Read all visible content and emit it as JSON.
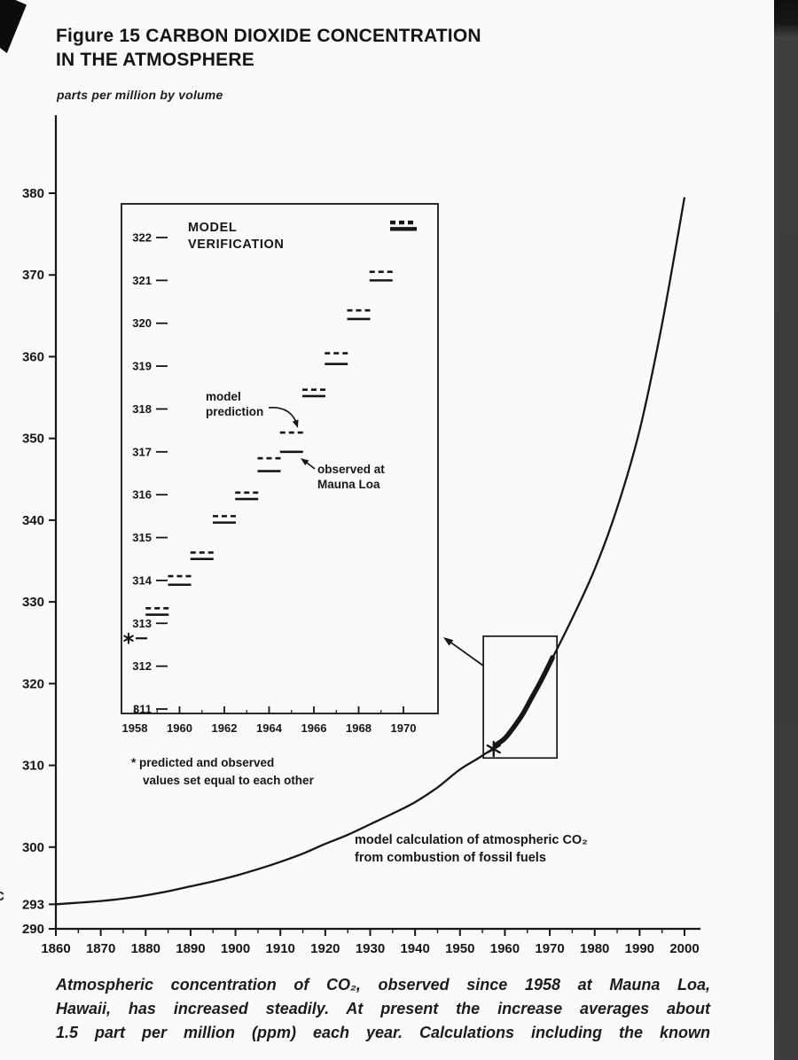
{
  "page": {
    "title_line1": "Figure 15 CARBON DIOXIDE CONCENTRATION",
    "title_line2": "IN THE ATMOSPHERE",
    "stray_mark": "c",
    "caption_lines": [
      "Atmospheric concentration of CO₂, observed since 1958 at Mauna Loa,",
      "Hawaii, has increased steadily. At present the increase averages about",
      "1.5 part per million (ppm) each year. Calculations including the known"
    ]
  },
  "chart_data": {
    "type": "line",
    "main": {
      "ylabel": "parts per million by volume",
      "xlim": [
        1860,
        2000
      ],
      "ylim": [
        290,
        380
      ],
      "grid": false,
      "x_ticks": [
        1860,
        1870,
        1880,
        1890,
        1900,
        1910,
        1920,
        1930,
        1940,
        1950,
        1960,
        1970,
        1980,
        1990,
        2000
      ],
      "y_tick_labels": [
        380,
        370,
        360,
        350,
        340,
        330,
        320,
        310,
        300,
        293,
        290
      ],
      "series": [
        {
          "name": "model calculation of atmospheric CO₂ from combustion of fossil fuels",
          "x": [
            1860,
            1865,
            1870,
            1875,
            1880,
            1885,
            1890,
            1895,
            1900,
            1905,
            1910,
            1915,
            1920,
            1925,
            1930,
            1935,
            1940,
            1945,
            1950,
            1955,
            1960,
            1965,
            1970,
            1975,
            1980,
            1985,
            1990,
            1995,
            2000
          ],
          "y": [
            293.0,
            293.2,
            293.4,
            293.7,
            294.1,
            294.6,
            295.2,
            295.8,
            296.5,
            297.3,
            298.2,
            299.2,
            300.4,
            301.5,
            302.8,
            304.1,
            305.5,
            307.3,
            309.5,
            311.2,
            313.3,
            317.3,
            322.5,
            328.0,
            334.0,
            341.5,
            351.0,
            364.0,
            379.5
          ]
        },
        {
          "name": "observed at Mauna Loa (heavy overlay segment)",
          "x": [
            1958,
            1960,
            1962,
            1964,
            1966,
            1968,
            1970,
            1970.6
          ],
          "y": [
            312.5,
            313.3,
            314.7,
            316.3,
            318.3,
            320.3,
            322.5,
            323.2
          ]
        }
      ],
      "annotation_lines": [
        "model calculation of atmospheric CO₂",
        "from combustion of fossil fuels"
      ],
      "start_marker": {
        "x": 1957.5,
        "y": 312.0,
        "symbol": "*"
      },
      "zoom_box": {
        "x0": 1955.2,
        "x1": 1971.6,
        "y0": 310.9,
        "y1": 325.8
      }
    },
    "inset": {
      "title_lines": [
        "MODEL",
        "VERIFICATION"
      ],
      "xlim": [
        1957.4,
        1971.6
      ],
      "ylim": [
        310.9,
        323.0
      ],
      "y_ticks": [
        311,
        312,
        313,
        314,
        315,
        316,
        317,
        318,
        319,
        320,
        321,
        322
      ],
      "x_tick_labels": [
        1958,
        1960,
        1962,
        1964,
        1966,
        1968,
        1970
      ],
      "years": [
        1958,
        1959,
        1960,
        1961,
        1962,
        1963,
        1964,
        1965,
        1966,
        1967,
        1968,
        1969,
        1970
      ],
      "model_prediction": [
        312.65,
        313.35,
        314.1,
        314.65,
        315.5,
        316.05,
        316.85,
        317.45,
        318.45,
        319.3,
        320.3,
        321.2,
        322.35
      ],
      "observed": [
        312.65,
        313.2,
        313.9,
        314.5,
        315.35,
        315.9,
        316.55,
        317.0,
        318.3,
        319.05,
        320.1,
        321.0,
        322.2
      ],
      "series_label_model_lines": [
        "model",
        "prediction"
      ],
      "series_label_observed_lines": [
        "observed at",
        "Mauna Loa"
      ],
      "footnote_lines": [
        "* predicted and observed",
        "values set equal to each other"
      ],
      "start_marker_symbol": "*"
    }
  }
}
